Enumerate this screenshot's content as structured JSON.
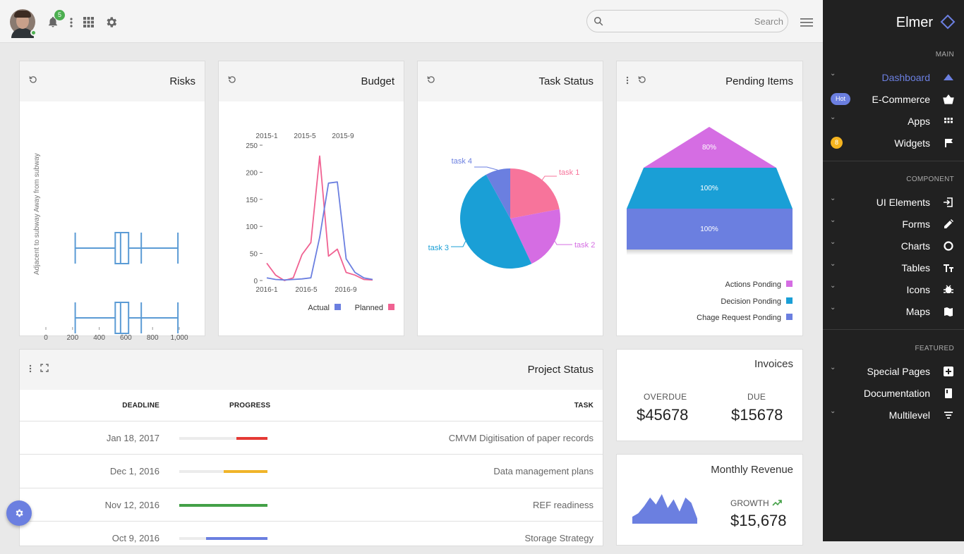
{
  "topbar": {
    "notifications_count": "5",
    "search_placeholder": "Search"
  },
  "sidebar": {
    "brand": "Elmer",
    "sections": {
      "main": "MAIN",
      "component": "COMPONENT",
      "featured": "FEATURED"
    },
    "items": [
      {
        "label": "Dashboard",
        "icon": "triangle-icon",
        "active": true
      },
      {
        "label": "E-Commerce",
        "icon": "basket-icon",
        "badge": "Hot"
      },
      {
        "label": "Apps",
        "icon": "apps-icon"
      },
      {
        "label": "Widgets",
        "icon": "flag-icon",
        "badge": "8"
      },
      {
        "label": "UI Elements",
        "icon": "login-icon"
      },
      {
        "label": "Forms",
        "icon": "pencil-icon"
      },
      {
        "label": "Charts",
        "icon": "donut-icon"
      },
      {
        "label": "Tables",
        "icon": "text-icon"
      },
      {
        "label": "Icons",
        "icon": "bug-icon"
      },
      {
        "label": "Maps",
        "icon": "map-icon"
      },
      {
        "label": "Special Pages",
        "icon": "plus-box-icon"
      },
      {
        "label": "Documentation",
        "icon": "book-icon"
      },
      {
        "label": "Multilevel",
        "icon": "filter-icon"
      }
    ],
    "accent_color": "#6b7fe0"
  },
  "cards": {
    "risks": {
      "title": "Risks"
    },
    "budget": {
      "title": "Budget"
    },
    "task_status": {
      "title": "Task Status"
    },
    "pending": {
      "title": "Pending Items"
    },
    "project_status": {
      "title": "Project Status"
    }
  },
  "chart_data": [
    {
      "type": "boxplot",
      "title": "Risks",
      "ylabel": "Adjacent to subway   Away from subway",
      "x_ticks": [
        "0",
        "200",
        "400",
        "600",
        "800",
        "1,000"
      ],
      "xlim": [
        0,
        1000
      ],
      "series": [
        {
          "min": 220,
          "q1": 520,
          "median": 560,
          "q3": 620,
          "max": 990
        },
        {
          "min": 220,
          "q1": 520,
          "median": 560,
          "q3": 620,
          "max": 990
        }
      ],
      "color": "#5b9bd5"
    },
    {
      "type": "line",
      "title": "Budget",
      "x_top_ticks": [
        "2015-1",
        "2015-5",
        "2015-9"
      ],
      "x_bottom_ticks": [
        "2016-1",
        "2016-5",
        "2016-9"
      ],
      "y_ticks": [
        "0",
        "50",
        "100",
        "150",
        "200",
        "250"
      ],
      "ylim": [
        0,
        250
      ],
      "series": [
        {
          "name": "Actual",
          "color": "#6b7fe0",
          "values": [
            5,
            2,
            1,
            2,
            3,
            5,
            80,
            180,
            182,
            40,
            15,
            5,
            2
          ]
        },
        {
          "name": "Planned",
          "color": "#f06292",
          "values": [
            32,
            10,
            0,
            5,
            48,
            70,
            230,
            45,
            58,
            15,
            10,
            2,
            1
          ]
        }
      ]
    },
    {
      "type": "pie",
      "title": "Task Status",
      "series": [
        {
          "name": "task 1",
          "value": 22,
          "color": "#f7749b"
        },
        {
          "name": "task 2",
          "value": 21,
          "color": "#d56de3"
        },
        {
          "name": "task 3",
          "value": 49,
          "color": "#1a9fd6"
        },
        {
          "name": "task 4",
          "value": 8,
          "color": "#6b7fe0"
        }
      ]
    },
    {
      "type": "funnel",
      "title": "Pending Items",
      "series": [
        {
          "name": "Actions Ponding",
          "label": "80%",
          "value": 80,
          "color": "#d56de3"
        },
        {
          "name": "Decision Ponding",
          "label": "100%",
          "value": 100,
          "color": "#1a9fd6"
        },
        {
          "name": "Chage Request Ponding",
          "label": "100%",
          "value": 100,
          "color": "#6b7fe0"
        }
      ]
    }
  ],
  "project_table": {
    "headers": [
      "DEADLINE",
      "PROGRESS",
      "TASK"
    ],
    "rows": [
      {
        "deadline": "Jan 18, 2017",
        "progress": 35,
        "color": "#e53935",
        "task": "CMVM Digitisation of paper records"
      },
      {
        "deadline": "Dec 1, 2016",
        "progress": 50,
        "color": "#f0b429",
        "task": "Data management plans"
      },
      {
        "deadline": "Nov 12, 2016",
        "progress": 100,
        "color": "#43a047",
        "task": "REF readiness"
      },
      {
        "deadline": "Oct 9, 2016",
        "progress": 70,
        "color": "#6b7fe0",
        "task": "Storage Strategy"
      }
    ]
  },
  "invoices": {
    "title": "Invoices",
    "overdue_label": "OVERDUE",
    "overdue_value": "$45678",
    "due_label": "DUE",
    "due_value": "$15678"
  },
  "revenue": {
    "title": "Monthly Revenue",
    "growth_label": "GROWTH",
    "growth_value": "$15,678",
    "sparkline": [
      8,
      12,
      20,
      30,
      22,
      34,
      18,
      28,
      14,
      30,
      24,
      6
    ],
    "color": "#6b7fe0"
  }
}
